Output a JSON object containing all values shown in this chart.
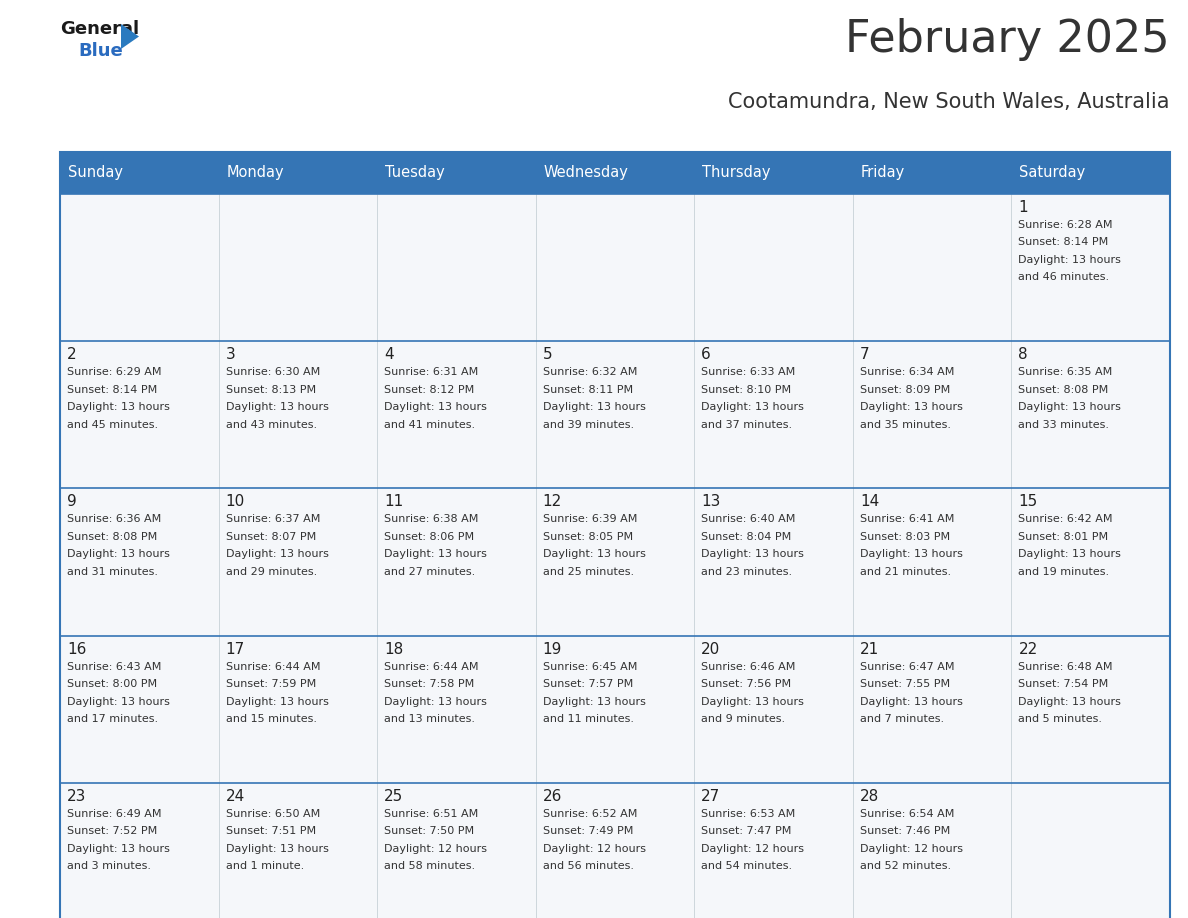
{
  "title": "February 2025",
  "subtitle": "Cootamundra, New South Wales, Australia",
  "header_bg": "#3575b5",
  "header_text_color": "#ffffff",
  "day_headers": [
    "Sunday",
    "Monday",
    "Tuesday",
    "Wednesday",
    "Thursday",
    "Friday",
    "Saturday"
  ],
  "calendar": [
    [
      null,
      null,
      null,
      null,
      null,
      null,
      {
        "day": 1,
        "sunrise": "6:28 AM",
        "sunset": "8:14 PM",
        "daylight": "13 hours",
        "daylight2": "and 46 minutes."
      }
    ],
    [
      {
        "day": 2,
        "sunrise": "6:29 AM",
        "sunset": "8:14 PM",
        "daylight": "13 hours",
        "daylight2": "and 45 minutes."
      },
      {
        "day": 3,
        "sunrise": "6:30 AM",
        "sunset": "8:13 PM",
        "daylight": "13 hours",
        "daylight2": "and 43 minutes."
      },
      {
        "day": 4,
        "sunrise": "6:31 AM",
        "sunset": "8:12 PM",
        "daylight": "13 hours",
        "daylight2": "and 41 minutes."
      },
      {
        "day": 5,
        "sunrise": "6:32 AM",
        "sunset": "8:11 PM",
        "daylight": "13 hours",
        "daylight2": "and 39 minutes."
      },
      {
        "day": 6,
        "sunrise": "6:33 AM",
        "sunset": "8:10 PM",
        "daylight": "13 hours",
        "daylight2": "and 37 minutes."
      },
      {
        "day": 7,
        "sunrise": "6:34 AM",
        "sunset": "8:09 PM",
        "daylight": "13 hours",
        "daylight2": "and 35 minutes."
      },
      {
        "day": 8,
        "sunrise": "6:35 AM",
        "sunset": "8:08 PM",
        "daylight": "13 hours",
        "daylight2": "and 33 minutes."
      }
    ],
    [
      {
        "day": 9,
        "sunrise": "6:36 AM",
        "sunset": "8:08 PM",
        "daylight": "13 hours",
        "daylight2": "and 31 minutes."
      },
      {
        "day": 10,
        "sunrise": "6:37 AM",
        "sunset": "8:07 PM",
        "daylight": "13 hours",
        "daylight2": "and 29 minutes."
      },
      {
        "day": 11,
        "sunrise": "6:38 AM",
        "sunset": "8:06 PM",
        "daylight": "13 hours",
        "daylight2": "and 27 minutes."
      },
      {
        "day": 12,
        "sunrise": "6:39 AM",
        "sunset": "8:05 PM",
        "daylight": "13 hours",
        "daylight2": "and 25 minutes."
      },
      {
        "day": 13,
        "sunrise": "6:40 AM",
        "sunset": "8:04 PM",
        "daylight": "13 hours",
        "daylight2": "and 23 minutes."
      },
      {
        "day": 14,
        "sunrise": "6:41 AM",
        "sunset": "8:03 PM",
        "daylight": "13 hours",
        "daylight2": "and 21 minutes."
      },
      {
        "day": 15,
        "sunrise": "6:42 AM",
        "sunset": "8:01 PM",
        "daylight": "13 hours",
        "daylight2": "and 19 minutes."
      }
    ],
    [
      {
        "day": 16,
        "sunrise": "6:43 AM",
        "sunset": "8:00 PM",
        "daylight": "13 hours",
        "daylight2": "and 17 minutes."
      },
      {
        "day": 17,
        "sunrise": "6:44 AM",
        "sunset": "7:59 PM",
        "daylight": "13 hours",
        "daylight2": "and 15 minutes."
      },
      {
        "day": 18,
        "sunrise": "6:44 AM",
        "sunset": "7:58 PM",
        "daylight": "13 hours",
        "daylight2": "and 13 minutes."
      },
      {
        "day": 19,
        "sunrise": "6:45 AM",
        "sunset": "7:57 PM",
        "daylight": "13 hours",
        "daylight2": "and 11 minutes."
      },
      {
        "day": 20,
        "sunrise": "6:46 AM",
        "sunset": "7:56 PM",
        "daylight": "13 hours",
        "daylight2": "and 9 minutes."
      },
      {
        "day": 21,
        "sunrise": "6:47 AM",
        "sunset": "7:55 PM",
        "daylight": "13 hours",
        "daylight2": "and 7 minutes."
      },
      {
        "day": 22,
        "sunrise": "6:48 AM",
        "sunset": "7:54 PM",
        "daylight": "13 hours",
        "daylight2": "and 5 minutes."
      }
    ],
    [
      {
        "day": 23,
        "sunrise": "6:49 AM",
        "sunset": "7:52 PM",
        "daylight": "13 hours",
        "daylight2": "and 3 minutes."
      },
      {
        "day": 24,
        "sunrise": "6:50 AM",
        "sunset": "7:51 PM",
        "daylight": "13 hours",
        "daylight2": "and 1 minute."
      },
      {
        "day": 25,
        "sunrise": "6:51 AM",
        "sunset": "7:50 PM",
        "daylight": "12 hours",
        "daylight2": "and 58 minutes."
      },
      {
        "day": 26,
        "sunrise": "6:52 AM",
        "sunset": "7:49 PM",
        "daylight": "12 hours",
        "daylight2": "and 56 minutes."
      },
      {
        "day": 27,
        "sunrise": "6:53 AM",
        "sunset": "7:47 PM",
        "daylight": "12 hours",
        "daylight2": "and 54 minutes."
      },
      {
        "day": 28,
        "sunrise": "6:54 AM",
        "sunset": "7:46 PM",
        "daylight": "12 hours",
        "daylight2": "and 52 minutes."
      },
      null
    ]
  ],
  "logo_color_general": "#1a1a1a",
  "logo_color_blue": "#2a6bbf",
  "logo_triangle_color": "#2a7abf",
  "border_color": "#3575b5",
  "text_color": "#333333",
  "day_num_color": "#222222",
  "info_font_size": 8.0,
  "day_num_font_size": 11,
  "header_font_size": 10.5,
  "title_font_size": 32,
  "subtitle_font_size": 15,
  "row_separator_color": "#3575b5",
  "cell_bg": "#f5f7fa"
}
